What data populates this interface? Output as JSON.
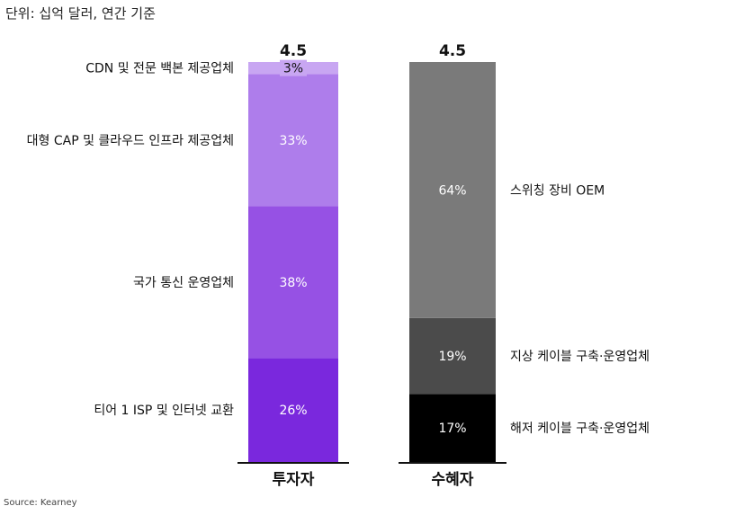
{
  "unit_note": "단위: 십억 달러, 연간 기준",
  "source": "Source: Kearney",
  "chart_data": {
    "type": "bar",
    "stacked": true,
    "unit": "십억 달러, 연간 기준",
    "bars": [
      {
        "category": "투자자",
        "total": "4.5",
        "segments": [
          {
            "name": "티어 1 ISP 및 인터넷 교환",
            "label": "26%",
            "value": 26,
            "color": "#7a28dd"
          },
          {
            "name": "국가 통신 운영업체",
            "label": "38%",
            "value": 38,
            "color": "#9651e4"
          },
          {
            "name": "대형 CAP 및 클라우드 인프라 제공업체",
            "label": "33%",
            "value": 33,
            "color": "#ae7deb"
          },
          {
            "name": "CDN 및 전문 백본 제공업체",
            "label": "3%",
            "value": 3,
            "color": "#c8a6f2"
          }
        ]
      },
      {
        "category": "수혜자",
        "total": "4.5",
        "segments": [
          {
            "name": "해저 케이블 구축·운영업체",
            "label": "17%",
            "value": 17,
            "color": "#000000"
          },
          {
            "name": "지상 케이블 구축·운영업체",
            "label": "19%",
            "value": 19,
            "color": "#4b4b4b"
          },
          {
            "name": "스위칭 장비 OEM",
            "label": "64%",
            "value": 64,
            "color": "#7a7a7a"
          }
        ]
      }
    ]
  }
}
